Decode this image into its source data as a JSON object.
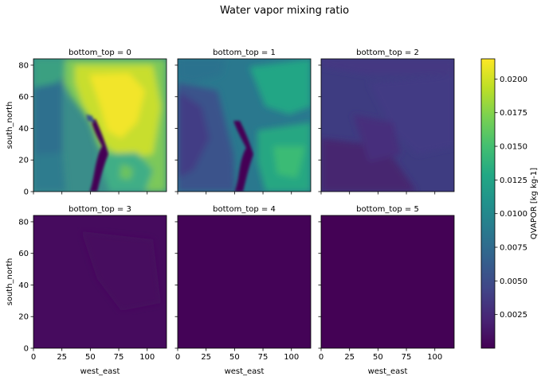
{
  "chart_data": {
    "type": "heatmap",
    "title": "Water vapor mixing ratio",
    "xlabel": "west_east",
    "ylabel": "south_north",
    "xlim": [
      0,
      117
    ],
    "ylim": [
      0,
      84
    ],
    "xticks": [
      0,
      25,
      50,
      75,
      100
    ],
    "yticks": [
      0,
      20,
      40,
      60,
      80
    ],
    "facet_variable": "bottom_top",
    "panels": [
      {
        "label": "bottom_top = 0",
        "level": 0
      },
      {
        "label": "bottom_top = 1",
        "level": 1
      },
      {
        "label": "bottom_top = 2",
        "level": 2
      },
      {
        "label": "bottom_top = 3",
        "level": 3
      },
      {
        "label": "bottom_top = 4",
        "level": 4
      },
      {
        "label": "bottom_top = 5",
        "level": 5
      }
    ],
    "colorbar": {
      "label": "QVAPOR [kg kg-1]",
      "range": [
        0.0,
        0.0215
      ],
      "ticks": [
        0.0025,
        0.005,
        0.0075,
        0.01,
        0.0125,
        0.015,
        0.0175,
        0.02
      ],
      "tick_labels": [
        "0.0025",
        "0.0050",
        "0.0075",
        "0.0100",
        "0.0125",
        "0.0150",
        "0.0175",
        "0.0200"
      ],
      "colormap": "viridis"
    }
  }
}
